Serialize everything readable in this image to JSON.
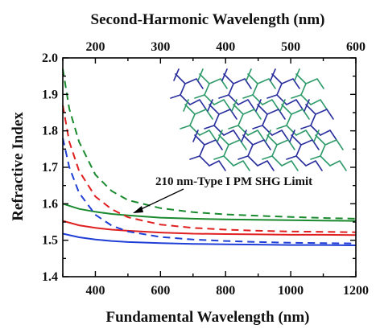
{
  "chart_data": {
    "type": "line",
    "xlabel": "Fundamental Wavelength (nm)",
    "x2label": "Second-Harmonic Wavelength (nm)",
    "ylabel": "Refractive Index",
    "xlim": [
      300,
      1200
    ],
    "ylim": [
      1.4,
      2.0
    ],
    "xticks": [
      400,
      600,
      800,
      1000,
      1200
    ],
    "x2ticks": [
      200,
      300,
      400,
      500,
      600
    ],
    "yticks": [
      1.4,
      1.5,
      1.6,
      1.7,
      1.8,
      1.9,
      2.0
    ],
    "yminor": [
      1.45,
      1.55,
      1.65,
      1.75,
      1.85,
      1.95
    ],
    "annotation": {
      "text": "210 nm-Type I PM SHG Limit",
      "x": 420,
      "y": 1.57
    },
    "series": [
      {
        "color": "#1a8a2e",
        "style": "solid",
        "x": [
          300,
          350,
          400,
          450,
          500,
          600,
          700,
          800,
          900,
          1000,
          1100,
          1200
        ],
        "y": [
          1.6,
          1.586,
          1.578,
          1.572,
          1.568,
          1.562,
          1.559,
          1.557,
          1.556,
          1.555,
          1.554,
          1.553
        ]
      },
      {
        "color": "#1a8a2e",
        "style": "dashed",
        "x": [
          300,
          320,
          350,
          400,
          450,
          500,
          600,
          700,
          800,
          900,
          1000,
          1100,
          1200
        ],
        "y": [
          1.97,
          1.86,
          1.77,
          1.68,
          1.635,
          1.61,
          1.588,
          1.577,
          1.571,
          1.567,
          1.564,
          1.561,
          1.559
        ]
      },
      {
        "color": "#e02020",
        "style": "solid",
        "x": [
          300,
          350,
          400,
          450,
          500,
          600,
          700,
          800,
          900,
          1000,
          1100,
          1200
        ],
        "y": [
          1.553,
          1.541,
          1.534,
          1.529,
          1.526,
          1.521,
          1.518,
          1.517,
          1.516,
          1.515,
          1.515,
          1.514
        ]
      },
      {
        "color": "#e02020",
        "style": "dashed",
        "x": [
          300,
          320,
          350,
          400,
          450,
          500,
          600,
          700,
          800,
          900,
          1000,
          1100,
          1200
        ],
        "y": [
          1.87,
          1.77,
          1.69,
          1.62,
          1.585,
          1.563,
          1.543,
          1.534,
          1.529,
          1.526,
          1.524,
          1.523,
          1.522
        ]
      },
      {
        "color": "#1f3fd6",
        "style": "solid",
        "x": [
          300,
          350,
          400,
          450,
          500,
          600,
          700,
          800,
          900,
          1000,
          1100,
          1200
        ],
        "y": [
          1.518,
          1.508,
          1.502,
          1.498,
          1.495,
          1.492,
          1.49,
          1.489,
          1.488,
          1.487,
          1.487,
          1.486
        ]
      },
      {
        "color": "#1f3fd6",
        "style": "dashed",
        "x": [
          300,
          320,
          350,
          400,
          450,
          500,
          600,
          700,
          800,
          900,
          1000,
          1100,
          1200
        ],
        "y": [
          1.78,
          1.7,
          1.63,
          1.57,
          1.54,
          1.524,
          1.509,
          1.502,
          1.498,
          1.495,
          1.493,
          1.492,
          1.491
        ]
      }
    ]
  }
}
